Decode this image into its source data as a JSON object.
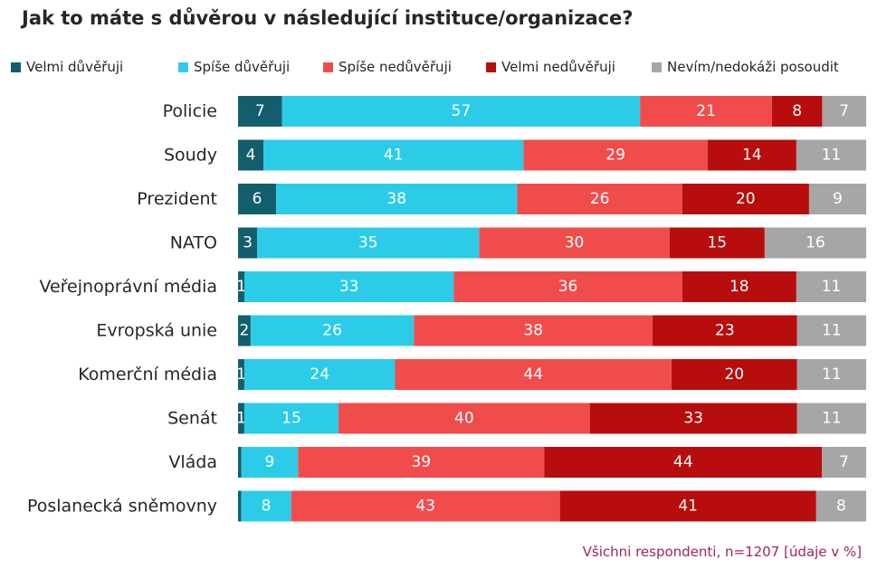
{
  "title": "Jak to máte s důvěrou v následující instituce/organizace?",
  "footnote": "Všichni respondenti, n=1207 [údaje v %]",
  "colors": {
    "velmi_duveruji": "#135e6c",
    "spise_duveruji": "#2ccce9",
    "spise_neduveruji": "#f14c4c",
    "velmi_neduveruji": "#b80d0d",
    "nevim": "#a6a6a6",
    "label_text": "#ffffff",
    "category_text": "#262626"
  },
  "chart_data": {
    "type": "bar",
    "orientation": "horizontal",
    "stacked": true,
    "unit": "%",
    "title": "Jak to máte s důvěrou v následující instituce/organizace?",
    "legend_position": "top",
    "grid": false,
    "categories": [
      "Policie",
      "Soudy",
      "Prezident",
      "NATO",
      "Veřejnoprávní média",
      "Evropská unie",
      "Komerční média",
      "Senát",
      "Vláda",
      "Poslanecká sněmovny"
    ],
    "series": [
      {
        "name": "Velmi důvěřuji",
        "color": "#135e6c",
        "values": [
          7,
          4,
          6,
          3,
          1,
          2,
          1,
          1,
          0.5,
          0.5
        ],
        "labels": [
          "7",
          "4",
          "6",
          "3",
          "1",
          "2",
          "1",
          "1",
          "",
          ""
        ]
      },
      {
        "name": "Spíše důvěřuji",
        "color": "#2ccce9",
        "values": [
          57,
          41,
          38,
          35,
          33,
          26,
          24,
          15,
          9,
          8
        ],
        "labels": [
          "57",
          "41",
          "38",
          "35",
          "33",
          "26",
          "24",
          "15",
          "9",
          "8"
        ]
      },
      {
        "name": "Spíše nedůvěřuji",
        "color": "#f14c4c",
        "values": [
          21,
          29,
          26,
          30,
          36,
          38,
          44,
          40,
          39,
          43
        ],
        "labels": [
          "21",
          "29",
          "26",
          "30",
          "36",
          "38",
          "44",
          "40",
          "39",
          "43"
        ]
      },
      {
        "name": "Velmi nedůvěřuji",
        "color": "#b80d0d",
        "values": [
          8,
          14,
          20,
          15,
          18,
          23,
          20,
          33,
          44,
          41
        ],
        "labels": [
          "8",
          "14",
          "20",
          "15",
          "18",
          "23",
          "20",
          "33",
          "44",
          "41"
        ]
      },
      {
        "name": "Nevím/nedokáži posoudit",
        "color": "#a6a6a6",
        "values": [
          7,
          11,
          9,
          16,
          11,
          11,
          11,
          11,
          7,
          8
        ],
        "labels": [
          "7",
          "11",
          "9",
          "16",
          "11",
          "11",
          "11",
          "11",
          "7",
          "8"
        ]
      }
    ]
  }
}
